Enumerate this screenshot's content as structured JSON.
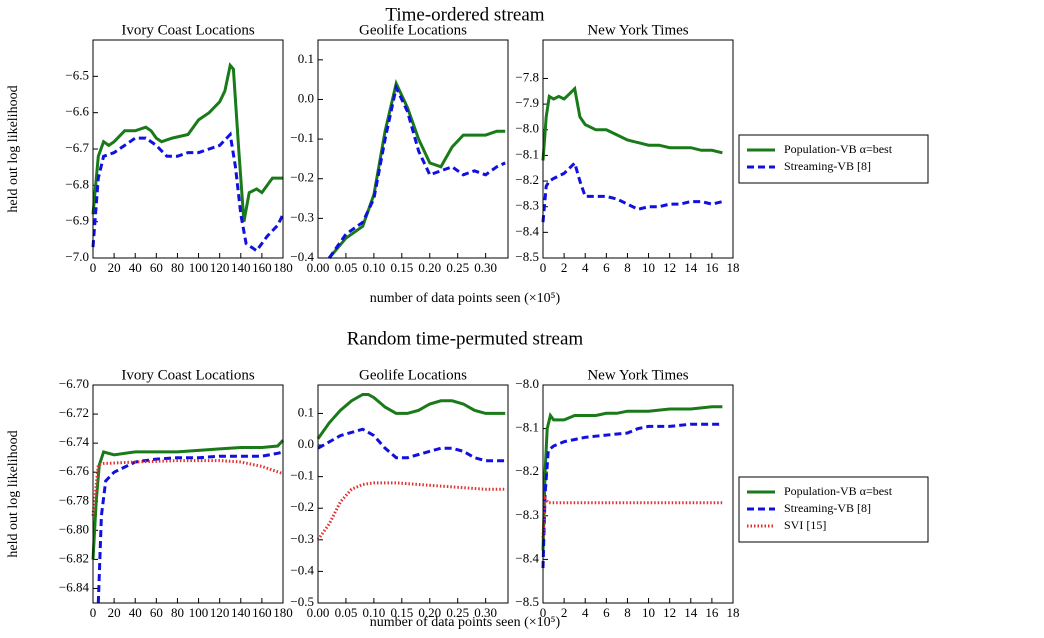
{
  "figure": {
    "rows": [
      {
        "title": "Time-ordered stream",
        "ylabel": "held out log likelihood",
        "xlabel": "number of data points seen (×10⁵)"
      },
      {
        "title": "Random time-permuted stream",
        "ylabel": "held out log likelihood",
        "xlabel": "number of data points seen (×10⁵)"
      }
    ]
  },
  "chart_data": [
    {
      "type": "line",
      "title": "Ivory Coast Locations",
      "xlim": [
        0,
        180
      ],
      "ylim": [
        -7.0,
        -6.4
      ],
      "xticks": [
        0,
        20,
        40,
        60,
        80,
        100,
        120,
        140,
        160,
        180
      ],
      "yticks": [
        {
          "value": -7.0,
          "label": "−7.0"
        },
        {
          "value": -6.9,
          "label": "−6.9"
        },
        {
          "value": -6.8,
          "label": "−6.8"
        },
        {
          "value": -6.7,
          "label": "−6.7"
        },
        {
          "value": -6.6,
          "label": "−6.6"
        },
        {
          "value": -6.5,
          "label": "−6.5"
        }
      ],
      "series": [
        {
          "color": "#1a7a1a",
          "style": "solid",
          "x": [
            0,
            5,
            10,
            15,
            20,
            30,
            40,
            50,
            55,
            60,
            65,
            75,
            90,
            100,
            110,
            120,
            125,
            130,
            133,
            138,
            143,
            148,
            155,
            160,
            170,
            180
          ],
          "values": [
            -6.88,
            -6.72,
            -6.68,
            -6.69,
            -6.68,
            -6.65,
            -6.65,
            -6.64,
            -6.65,
            -6.67,
            -6.68,
            -6.67,
            -6.66,
            -6.62,
            -6.6,
            -6.57,
            -6.54,
            -6.47,
            -6.48,
            -6.7,
            -6.9,
            -6.82,
            -6.81,
            -6.82,
            -6.78,
            -6.78
          ]
        },
        {
          "color": "#1010e0",
          "style": "dashed",
          "x": [
            0,
            5,
            10,
            20,
            30,
            40,
            50,
            60,
            70,
            80,
            90,
            100,
            110,
            120,
            130,
            135,
            140,
            145,
            155,
            165,
            175,
            180
          ],
          "values": [
            -6.97,
            -6.78,
            -6.72,
            -6.71,
            -6.69,
            -6.67,
            -6.67,
            -6.69,
            -6.72,
            -6.72,
            -6.71,
            -6.71,
            -6.7,
            -6.69,
            -6.66,
            -6.75,
            -6.88,
            -6.96,
            -6.98,
            -6.94,
            -6.91,
            -6.88
          ]
        }
      ]
    },
    {
      "type": "line",
      "title": "Geolife Locations",
      "xlim": [
        0,
        0.34
      ],
      "ylim": [
        -0.4,
        0.15
      ],
      "xticks": [
        {
          "value": 0,
          "label": "0.00"
        },
        {
          "value": 0.05,
          "label": "0.05"
        },
        {
          "value": 0.1,
          "label": "0.10"
        },
        {
          "value": 0.15,
          "label": "0.15"
        },
        {
          "value": 0.2,
          "label": "0.20"
        },
        {
          "value": 0.25,
          "label": "0.25"
        },
        {
          "value": 0.3,
          "label": "0.30"
        }
      ],
      "yticks": [
        {
          "value": -0.4,
          "label": "−0.4"
        },
        {
          "value": -0.3,
          "label": "−0.3"
        },
        {
          "value": -0.2,
          "label": "−0.2"
        },
        {
          "value": -0.1,
          "label": "−0.1"
        },
        {
          "value": 0,
          "label": "0.0"
        },
        {
          "value": 0.1,
          "label": "0.1"
        }
      ],
      "series": [
        {
          "color": "#1a7a1a",
          "style": "solid",
          "x": [
            0.02,
            0.05,
            0.08,
            0.1,
            0.12,
            0.14,
            0.16,
            0.18,
            0.2,
            0.22,
            0.24,
            0.26,
            0.28,
            0.3,
            0.32,
            0.335
          ],
          "values": [
            -0.4,
            -0.35,
            -0.32,
            -0.24,
            -0.08,
            0.04,
            -0.02,
            -0.1,
            -0.16,
            -0.17,
            -0.12,
            -0.09,
            -0.09,
            -0.09,
            -0.08,
            -0.08
          ]
        },
        {
          "color": "#1010e0",
          "style": "dashed",
          "x": [
            0.02,
            0.05,
            0.08,
            0.1,
            0.12,
            0.14,
            0.16,
            0.18,
            0.2,
            0.22,
            0.24,
            0.26,
            0.28,
            0.3,
            0.32,
            0.335
          ],
          "values": [
            -0.4,
            -0.34,
            -0.31,
            -0.25,
            -0.1,
            0.03,
            -0.03,
            -0.13,
            -0.19,
            -0.18,
            -0.17,
            -0.19,
            -0.18,
            -0.19,
            -0.17,
            -0.16
          ]
        }
      ]
    },
    {
      "type": "line",
      "title": "New York Times",
      "xlim": [
        0,
        18
      ],
      "ylim": [
        -8.5,
        -7.65
      ],
      "xticks": [
        0,
        2,
        4,
        6,
        8,
        10,
        12,
        14,
        16,
        18
      ],
      "yticks": [
        {
          "value": -8.5,
          "label": "−8.5"
        },
        {
          "value": -8.4,
          "label": "−8.4"
        },
        {
          "value": -8.3,
          "label": "−8.3"
        },
        {
          "value": -8.2,
          "label": "−8.2"
        },
        {
          "value": -8.1,
          "label": "−8.1"
        },
        {
          "value": -8.0,
          "label": "−8.0"
        },
        {
          "value": -7.9,
          "label": "−7.9"
        },
        {
          "value": -7.8,
          "label": "−7.8"
        }
      ],
      "series": [
        {
          "name": "Population-VB α=best",
          "color": "#1a7a1a",
          "style": "solid",
          "x": [
            0,
            0.3,
            0.6,
            1,
            1.5,
            2,
            2.5,
            3,
            3.5,
            4,
            5,
            6,
            7,
            8,
            9,
            10,
            11,
            12,
            13,
            14,
            15,
            16,
            17
          ],
          "values": [
            -8.12,
            -7.95,
            -7.87,
            -7.88,
            -7.87,
            -7.88,
            -7.86,
            -7.84,
            -7.95,
            -7.98,
            -8.0,
            -8.0,
            -8.02,
            -8.04,
            -8.05,
            -8.06,
            -8.06,
            -8.07,
            -8.07,
            -8.07,
            -8.08,
            -8.08,
            -8.09
          ]
        },
        {
          "name": "Streaming-VB [8]",
          "color": "#1010e0",
          "style": "dashed",
          "x": [
            0,
            0.3,
            0.6,
            1,
            2,
            3,
            3.5,
            4,
            5,
            6,
            7,
            8,
            9,
            10,
            11,
            12,
            13,
            14,
            15,
            16,
            17
          ],
          "values": [
            -8.36,
            -8.22,
            -8.2,
            -8.19,
            -8.17,
            -8.13,
            -8.2,
            -8.26,
            -8.26,
            -8.26,
            -8.27,
            -8.29,
            -8.31,
            -8.3,
            -8.3,
            -8.29,
            -8.29,
            -8.28,
            -8.28,
            -8.29,
            -8.28
          ]
        }
      ]
    },
    {
      "type": "line",
      "title": "Ivory Coast Locations",
      "xlim": [
        0,
        180
      ],
      "ylim": [
        -6.85,
        -6.7
      ],
      "xticks": [
        0,
        20,
        40,
        60,
        80,
        100,
        120,
        140,
        160,
        180
      ],
      "yticks": [
        {
          "value": -6.84,
          "label": "−6.84"
        },
        {
          "value": -6.82,
          "label": "−6.82"
        },
        {
          "value": -6.8,
          "label": "−6.80"
        },
        {
          "value": -6.78,
          "label": "−6.78"
        },
        {
          "value": -6.76,
          "label": "−6.76"
        },
        {
          "value": -6.74,
          "label": "−6.74"
        },
        {
          "value": -6.72,
          "label": "−6.72"
        },
        {
          "value": -6.7,
          "label": "−6.70"
        }
      ],
      "series": [
        {
          "color": "#1a7a1a",
          "style": "solid",
          "x": [
            0,
            3,
            6,
            10,
            20,
            40,
            60,
            80,
            100,
            120,
            140,
            160,
            175,
            180
          ],
          "values": [
            -6.82,
            -6.78,
            -6.755,
            -6.746,
            -6.748,
            -6.746,
            -6.746,
            -6.746,
            -6.745,
            -6.744,
            -6.743,
            -6.743,
            -6.742,
            -6.738
          ]
        },
        {
          "color": "#1010e0",
          "style": "dashed",
          "x": [
            5,
            8,
            12,
            20,
            40,
            60,
            80,
            100,
            120,
            140,
            160,
            175,
            180
          ],
          "values": [
            -6.85,
            -6.79,
            -6.766,
            -6.76,
            -6.753,
            -6.751,
            -6.75,
            -6.75,
            -6.749,
            -6.749,
            -6.749,
            -6.747,
            -6.746
          ]
        },
        {
          "color": "#e03030",
          "style": "dotted",
          "x": [
            0,
            5,
            10,
            40,
            80,
            120,
            140,
            160,
            180
          ],
          "values": [
            -6.79,
            -6.755,
            -6.754,
            -6.753,
            -6.752,
            -6.752,
            -6.753,
            -6.756,
            -6.761
          ]
        }
      ]
    },
    {
      "type": "line",
      "title": "Geolife Locations",
      "xlim": [
        0,
        0.34
      ],
      "ylim": [
        -0.5,
        0.19
      ],
      "xticks": [
        {
          "value": 0,
          "label": "0.00"
        },
        {
          "value": 0.05,
          "label": "0.05"
        },
        {
          "value": 0.1,
          "label": "0.10"
        },
        {
          "value": 0.15,
          "label": "0.15"
        },
        {
          "value": 0.2,
          "label": "0.20"
        },
        {
          "value": 0.25,
          "label": "0.25"
        },
        {
          "value": 0.3,
          "label": "0.30"
        }
      ],
      "yticks": [
        {
          "value": -0.5,
          "label": "−0.5"
        },
        {
          "value": -0.4,
          "label": "−0.4"
        },
        {
          "value": -0.3,
          "label": "−0.3"
        },
        {
          "value": -0.2,
          "label": "−0.2"
        },
        {
          "value": -0.1,
          "label": "−0.1"
        },
        {
          "value": 0,
          "label": "0.0"
        },
        {
          "value": 0.1,
          "label": "0.1"
        }
      ],
      "series": [
        {
          "color": "#1a7a1a",
          "style": "solid",
          "x": [
            0,
            0.02,
            0.04,
            0.06,
            0.08,
            0.09,
            0.1,
            0.12,
            0.14,
            0.16,
            0.18,
            0.2,
            0.22,
            0.24,
            0.26,
            0.28,
            0.3,
            0.335
          ],
          "values": [
            0.02,
            0.07,
            0.11,
            0.14,
            0.16,
            0.16,
            0.15,
            0.12,
            0.1,
            0.1,
            0.11,
            0.13,
            0.14,
            0.14,
            0.13,
            0.11,
            0.1,
            0.1
          ]
        },
        {
          "color": "#1010e0",
          "style": "dashed",
          "x": [
            0,
            0.02,
            0.04,
            0.06,
            0.08,
            0.1,
            0.12,
            0.14,
            0.16,
            0.18,
            0.2,
            0.22,
            0.24,
            0.26,
            0.28,
            0.3,
            0.335
          ],
          "values": [
            -0.01,
            0.01,
            0.03,
            0.04,
            0.05,
            0.03,
            -0.01,
            -0.04,
            -0.04,
            -0.03,
            -0.02,
            -0.01,
            -0.01,
            -0.02,
            -0.04,
            -0.05,
            -0.05
          ]
        },
        {
          "color": "#e03030",
          "style": "dotted",
          "x": [
            0,
            0.02,
            0.04,
            0.06,
            0.08,
            0.1,
            0.14,
            0.18,
            0.22,
            0.26,
            0.3,
            0.335
          ],
          "values": [
            -0.3,
            -0.25,
            -0.18,
            -0.14,
            -0.125,
            -0.12,
            -0.12,
            -0.125,
            -0.13,
            -0.135,
            -0.14,
            -0.14
          ]
        }
      ]
    },
    {
      "type": "line",
      "title": "New York Times",
      "xlim": [
        0,
        18
      ],
      "ylim": [
        -8.5,
        -8.0
      ],
      "xticks": [
        0,
        2,
        4,
        6,
        8,
        10,
        12,
        14,
        16,
        18
      ],
      "yticks": [
        {
          "value": -8.5,
          "label": "−8.5"
        },
        {
          "value": -8.4,
          "label": "−8.4"
        },
        {
          "value": -8.3,
          "label": "−8.3"
        },
        {
          "value": -8.2,
          "label": "−8.2"
        },
        {
          "value": -8.1,
          "label": "−8.1"
        },
        {
          "value": -8.0,
          "label": "−8.0"
        }
      ],
      "series": [
        {
          "name": "Population-VB α=best",
          "color": "#1a7a1a",
          "style": "solid",
          "x": [
            0,
            0.2,
            0.4,
            0.7,
            1,
            2,
            3,
            4,
            5,
            6,
            7,
            8,
            10,
            12,
            14,
            16,
            17
          ],
          "values": [
            -8.38,
            -8.2,
            -8.1,
            -8.07,
            -8.08,
            -8.08,
            -8.07,
            -8.07,
            -8.07,
            -8.065,
            -8.065,
            -8.06,
            -8.06,
            -8.055,
            -8.055,
            -8.05,
            -8.05
          ]
        },
        {
          "name": "Streaming-VB [8]",
          "color": "#1010e0",
          "style": "dashed",
          "x": [
            0,
            0.2,
            0.5,
            1,
            2,
            3,
            4,
            6,
            8,
            9,
            10,
            12,
            14,
            16,
            17
          ],
          "values": [
            -8.42,
            -8.25,
            -8.15,
            -8.14,
            -8.13,
            -8.125,
            -8.12,
            -8.115,
            -8.11,
            -8.1,
            -8.095,
            -8.095,
            -8.09,
            -8.09,
            -8.09
          ]
        },
        {
          "name": "SVI [15]",
          "color": "#e03030",
          "style": "dotted",
          "x": [
            0,
            0.2,
            0.5,
            1,
            17
          ],
          "values": [
            -8.35,
            -8.26,
            -8.27,
            -8.27,
            -8.27
          ]
        }
      ]
    }
  ]
}
